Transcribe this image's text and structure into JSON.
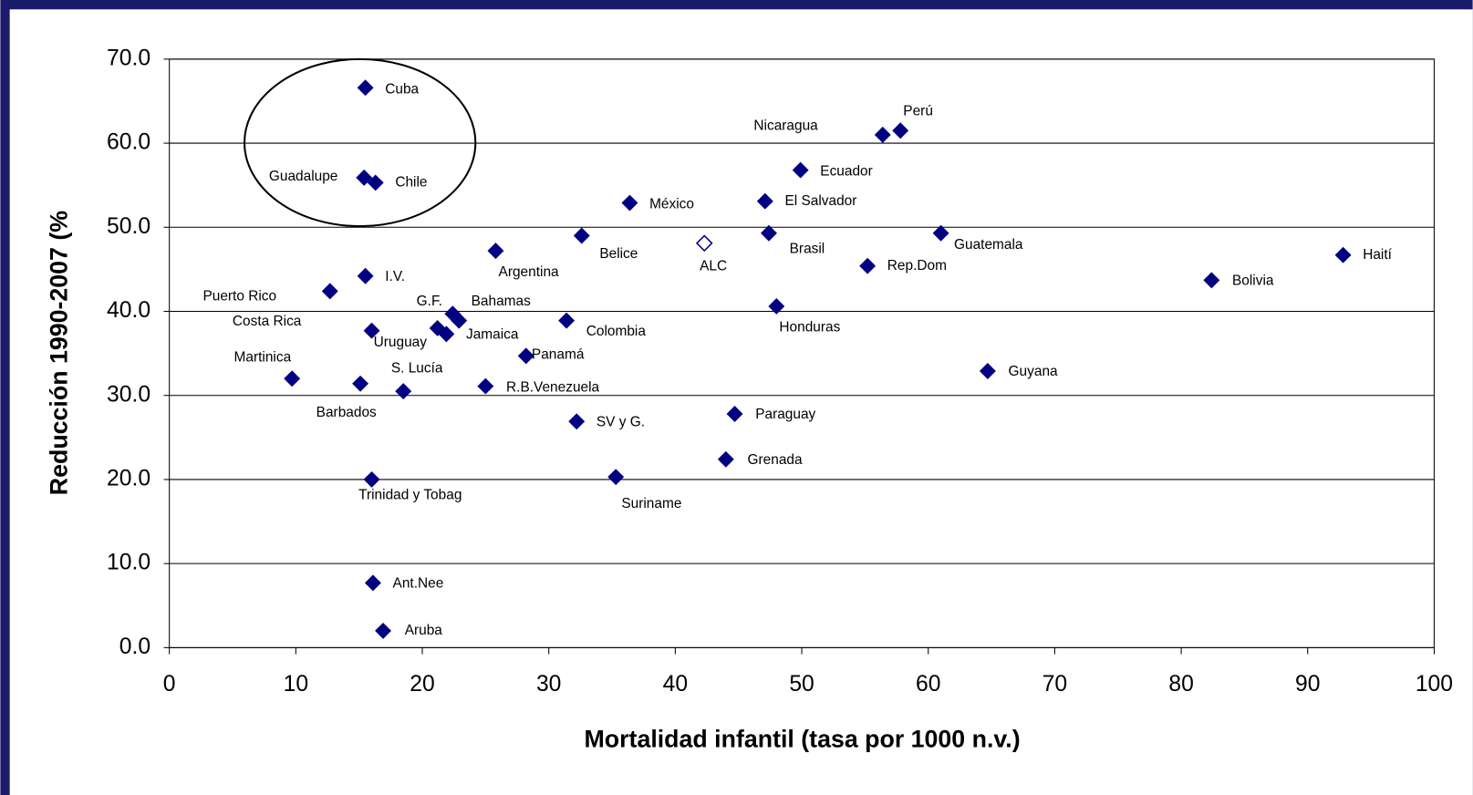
{
  "chart_data": {
    "type": "scatter",
    "xlabel": "Mortalidad infantil (tasa por 1000 n.v.)",
    "ylabel": "Reducción 1990-2007 (%",
    "xlim": [
      0,
      100
    ],
    "xticks": [
      0,
      10,
      20,
      30,
      40,
      50,
      60,
      70,
      80,
      90,
      100
    ],
    "ylim": [
      0,
      70
    ],
    "yticks": [
      {
        "value": 0,
        "label": "0.0"
      },
      {
        "value": 10,
        "label": "10.0"
      },
      {
        "value": 20,
        "label": "20.0"
      },
      {
        "value": 30,
        "label": "30.0"
      },
      {
        "value": 40,
        "label": "40.0"
      },
      {
        "value": 50,
        "label": "50.0"
      },
      {
        "value": 60,
        "label": "60.0"
      },
      {
        "value": 70,
        "label": "70.0"
      }
    ],
    "grid": true,
    "series": [
      {
        "color": "#000080",
        "marker": "filled",
        "labels": [
          "Cuba",
          "Guadalupe",
          "Chile",
          "Nicaragua",
          "Perú",
          "Ecuador",
          "México",
          "El Salvador",
          "Belice",
          "Brasil",
          "Guatemala",
          "Argentina",
          "Haití",
          "Rep.Dom",
          "Bolivia",
          "I.V.",
          "Puerto Rico",
          "Honduras",
          "G.F.",
          "Bahamas",
          "Colombia",
          "Costa Rica",
          "Jamaica",
          "Uruguay",
          "Panamá",
          "Martinica",
          "Barbados",
          "S. Lucía",
          "R.B.Venezuela",
          "Guyana",
          "Paraguay",
          "SV y G.",
          "Grenada",
          "Suriname",
          "Trinidad y Tobag",
          "Ant.Nee",
          "Aruba"
        ],
        "x": [
          15.5,
          15.4,
          16.3,
          56.4,
          57.8,
          49.9,
          36.4,
          47.1,
          32.6,
          47.4,
          61.0,
          25.8,
          92.8,
          55.2,
          82.4,
          15.5,
          12.7,
          48.0,
          22.4,
          22.9,
          31.4,
          21.2,
          21.9,
          16.0,
          28.2,
          9.7,
          15.1,
          18.5,
          25.0,
          64.7,
          44.7,
          32.2,
          44.0,
          35.3,
          16.0,
          16.1,
          16.9
        ],
        "values": [
          66.6,
          55.9,
          55.3,
          61.0,
          61.5,
          56.8,
          52.9,
          53.1,
          49.0,
          49.3,
          49.3,
          47.2,
          46.7,
          45.4,
          43.7,
          44.2,
          42.4,
          40.6,
          39.7,
          38.9,
          38.9,
          38.0,
          37.3,
          37.7,
          34.7,
          32.0,
          31.4,
          30.5,
          31.1,
          32.9,
          27.8,
          26.9,
          22.4,
          20.3,
          20.0,
          7.7,
          2.0
        ]
      },
      {
        "color": "#000080",
        "marker": "hollow",
        "labels": [
          "ALC"
        ],
        "x": [
          42.3
        ],
        "values": [
          48.1
        ]
      }
    ]
  }
}
